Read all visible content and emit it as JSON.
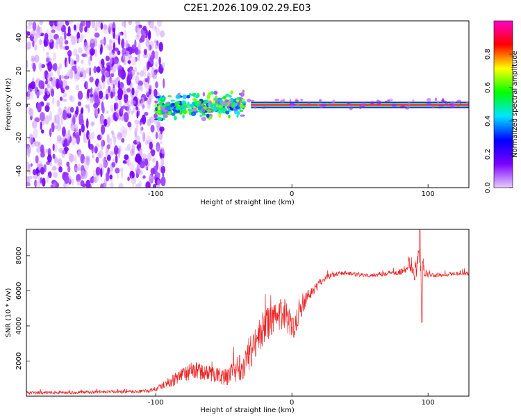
{
  "figure": {
    "title": "C2E1.2026.109.02.29.E03"
  },
  "chart_data": [
    {
      "type": "heatmap",
      "name": "spectrogram",
      "xlabel": "Height of straight line (km)",
      "ylabel": "Frequency (Hz)",
      "xlim": [
        -195,
        130
      ],
      "ylim": [
        -50,
        50
      ],
      "x_ticks": [
        -100,
        0,
        100
      ],
      "x_tick_labels": [
        "-100",
        "0",
        "100"
      ],
      "y_ticks": [
        -40,
        -20,
        0,
        20,
        40
      ],
      "y_tick_labels": [
        "-40",
        "-20",
        "0",
        "20",
        "40"
      ],
      "colorbar": {
        "label": "Normalized spectral amplitude",
        "range": [
          0,
          1
        ],
        "ticks": [
          0,
          0.2,
          0.4,
          0.6,
          0.8
        ],
        "tick_labels": [
          "0.0",
          "0.2",
          "0.4",
          "0.6",
          "0.8"
        ],
        "colormap": [
          "#e8ccff",
          "#7a00ff",
          "#0000ff",
          "#00e5ff",
          "#00ff00",
          "#ffff00",
          "#ff0000",
          "#ff00c8"
        ]
      },
      "regions": [
        {
          "name": "broadband noise",
          "x_range": [
            -195,
            -100
          ],
          "freq_range": [
            -50,
            50
          ],
          "amplitude": 0.1
        },
        {
          "name": "noisy onset",
          "x_range": [
            -100,
            -35
          ],
          "freq_range": [
            -8,
            6
          ],
          "amplitude": 0.45
        },
        {
          "name": "tone",
          "x_range": [
            -35,
            130
          ],
          "freq_hz": 0,
          "amplitude": 0.95
        }
      ]
    },
    {
      "type": "line",
      "name": "snr",
      "xlabel": "Height of straight line (km)",
      "ylabel": "SNR (10 * v/v)",
      "xlim": [
        -195,
        130
      ],
      "ylim": [
        0,
        9500
      ],
      "x_ticks": [
        -100,
        0,
        100
      ],
      "x_tick_labels": [
        "-100",
        "0",
        "100"
      ],
      "y_ticks": [
        2000,
        4000,
        6000,
        8000
      ],
      "y_tick_labels": [
        "2000",
        "4000",
        "6000",
        "8000"
      ],
      "color": "#ee2222",
      "series": [
        {
          "name": "SNR",
          "x": [
            -195,
            -180,
            -160,
            -140,
            -120,
            -105,
            -100,
            -95,
            -90,
            -85,
            -80,
            -75,
            -70,
            -65,
            -60,
            -55,
            -50,
            -45,
            -40,
            -35,
            -30,
            -25,
            -20,
            -15,
            -10,
            -5,
            0,
            5,
            10,
            15,
            20,
            25,
            30,
            35,
            40,
            50,
            60,
            70,
            80,
            85,
            88,
            90,
            92,
            94,
            95,
            96,
            98,
            100,
            110,
            120,
            130
          ],
          "y": [
            200,
            200,
            200,
            250,
            250,
            300,
            400,
            600,
            800,
            1000,
            1200,
            1400,
            1500,
            1300,
            1300,
            1200,
            1100,
            1200,
            1600,
            1900,
            2600,
            3300,
            4000,
            4300,
            4400,
            4800,
            3800,
            4700,
            5500,
            6000,
            6400,
            6800,
            6900,
            7000,
            7000,
            6900,
            6900,
            7000,
            7100,
            7200,
            7300,
            6800,
            7400,
            8200,
            5800,
            7300,
            7000,
            6900,
            6900,
            7000,
            7000
          ],
          "spread": [
            180,
            180,
            180,
            180,
            200,
            200,
            300,
            400,
            600,
            800,
            900,
            1000,
            1000,
            900,
            900,
            900,
            1000,
            1200,
            1600,
            1800,
            2000,
            2000,
            2000,
            1800,
            1800,
            1800,
            1600,
            1300,
            1000,
            700,
            500,
            350,
            300,
            250,
            250,
            250,
            250,
            300,
            400,
            600,
            800,
            900,
            1100,
            1300,
            1500,
            900,
            400,
            300,
            250,
            250,
            250
          ]
        }
      ]
    }
  ]
}
